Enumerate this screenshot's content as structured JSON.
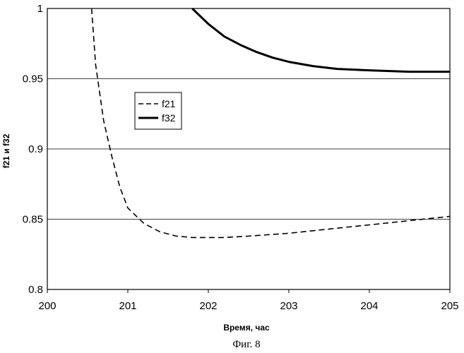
{
  "chart_data": {
    "type": "line",
    "xlabel": "Время, час",
    "ylabel": "f21 и f32",
    "xlim": [
      200,
      205
    ],
    "ylim": [
      0.8,
      1
    ],
    "x_ticks": [
      "200",
      "201",
      "202",
      "203",
      "204",
      "205"
    ],
    "y_ticks": [
      "0.8",
      "0.85",
      "0.9",
      "0.95",
      "1"
    ],
    "grid": "horizontal",
    "legend_position": "upper-left",
    "series": [
      {
        "name": "f21",
        "style": "dashed",
        "color": "#000000",
        "x": [
          200.55,
          200.6,
          200.7,
          200.8,
          200.9,
          201.0,
          201.2,
          201.4,
          201.6,
          201.8,
          202.0,
          202.2,
          202.5,
          203.0,
          203.5,
          204.0,
          204.5,
          205.0
        ],
        "y": [
          1.0,
          0.96,
          0.92,
          0.895,
          0.873,
          0.858,
          0.847,
          0.841,
          0.838,
          0.837,
          0.837,
          0.837,
          0.838,
          0.84,
          0.843,
          0.846,
          0.849,
          0.852
        ]
      },
      {
        "name": "f32",
        "style": "solid",
        "color": "#000000",
        "x": [
          201.8,
          202.0,
          202.2,
          202.4,
          202.6,
          202.8,
          203.0,
          203.3,
          203.6,
          204.0,
          204.5,
          205.0
        ],
        "y": [
          1.0,
          0.989,
          0.98,
          0.974,
          0.969,
          0.965,
          0.962,
          0.959,
          0.957,
          0.956,
          0.955,
          0.955
        ]
      }
    ]
  },
  "caption": "Фиг. 8"
}
